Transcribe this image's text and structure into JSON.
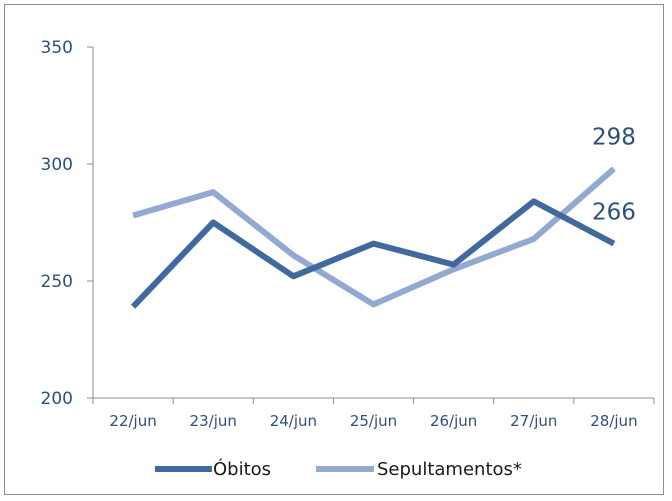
{
  "chart_data": {
    "type": "line",
    "title": "",
    "xlabel": "",
    "ylabel": "",
    "categories": [
      "22/jun",
      "23/jun",
      "24/jun",
      "25/jun",
      "26/jun",
      "27/jun",
      "28/jun"
    ],
    "ylim": [
      200,
      350
    ],
    "yticks": [
      "200",
      "250",
      "300",
      "350"
    ],
    "grid": false,
    "legend_position": "bottom",
    "series": [
      {
        "name": "Óbitos",
        "color": "#41699d",
        "values": [
          239,
          275,
          252,
          266,
          257,
          284,
          266
        ]
      },
      {
        "name": "Sepultamentos*",
        "color": "#93a9d2",
        "values": [
          278,
          288,
          261,
          240,
          255,
          268,
          298
        ]
      }
    ],
    "annotations": [
      {
        "series": 1,
        "index": 6,
        "text": "298"
      },
      {
        "series": 0,
        "index": 6,
        "text": "266"
      }
    ]
  }
}
